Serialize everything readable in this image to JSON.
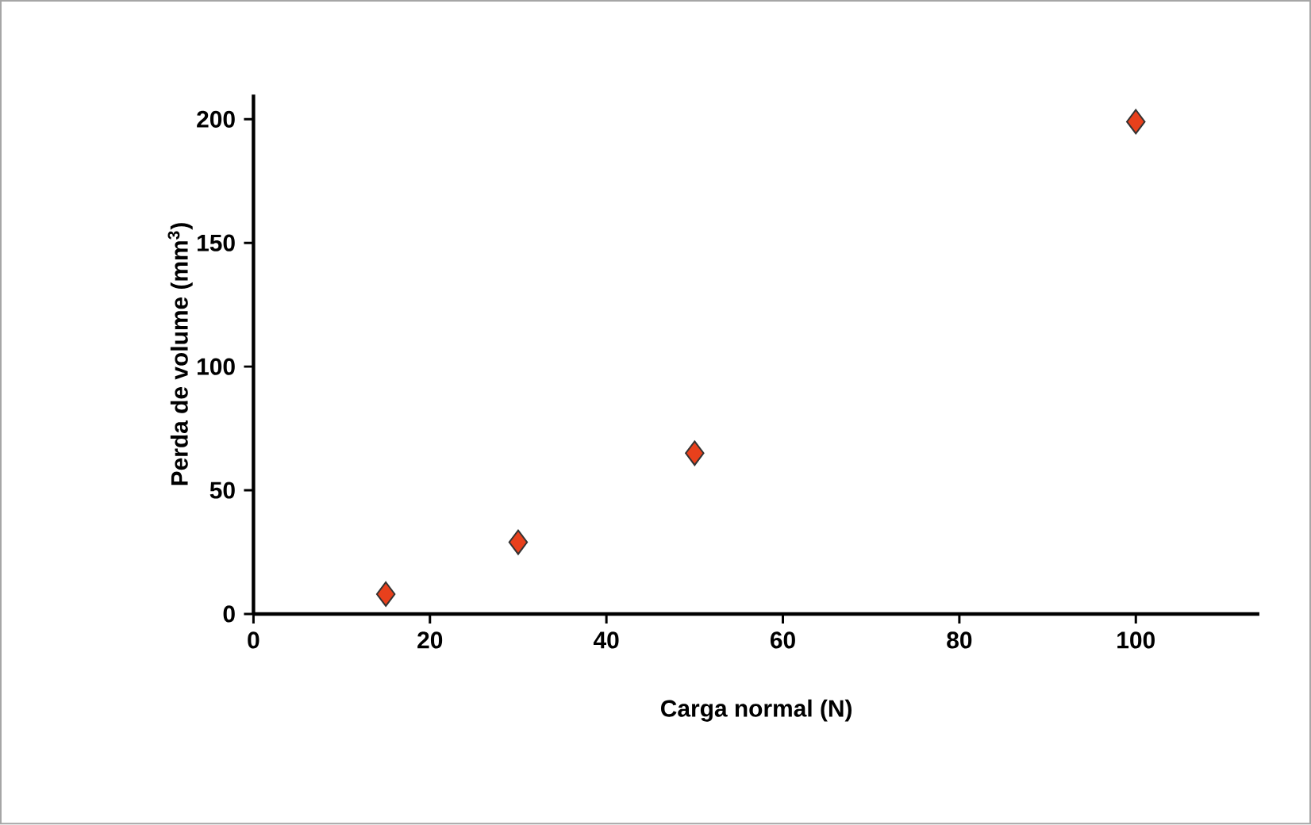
{
  "chart_data": {
    "type": "scatter",
    "xlabel": "Carga normal (N)",
    "ylabel": "Perda de volume (mm$^{3}$)",
    "x": [
      15,
      30,
      50,
      100
    ],
    "series": [
      {
        "color": "#e8401c",
        "values": [
          8,
          29,
          65,
          199
        ]
      }
    ],
    "xlim": [
      0,
      114
    ],
    "ylim": [
      0,
      210
    ],
    "xticks": [
      0,
      20,
      40,
      60,
      80,
      100
    ],
    "yticks": [
      0,
      50,
      100,
      150,
      200
    ],
    "marker": "diamond",
    "grid": false
  }
}
